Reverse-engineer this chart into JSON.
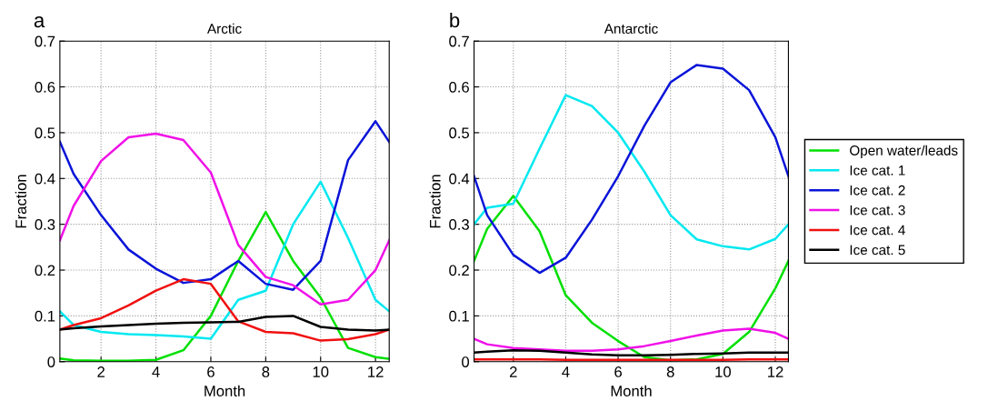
{
  "chart_data": [
    {
      "type": "line",
      "title": "Arctic",
      "xlabel": "Month",
      "ylabel": "Fraction",
      "annotations": [
        "a"
      ],
      "x": [
        0.5,
        1,
        2,
        3,
        4,
        5,
        6,
        7,
        8,
        9,
        10,
        11,
        12,
        12.5
      ],
      "xlim": [
        0.5,
        12.5
      ],
      "xticks": [
        2,
        4,
        6,
        8,
        10,
        12
      ],
      "ylim": [
        0,
        0.7
      ],
      "yticks": [
        0,
        0.1,
        0.2,
        0.3,
        0.4,
        0.5,
        0.6,
        0.7
      ],
      "grid": true,
      "series": [
        {
          "color": "#00e000",
          "values": [
            0.007,
            0.003,
            0.002,
            0.002,
            0.004,
            0.025,
            0.1,
            0.22,
            0.327,
            0.22,
            0.14,
            0.03,
            0.01,
            0.006
          ]
        },
        {
          "color": "#00e8f0",
          "values": [
            0.11,
            0.08,
            0.065,
            0.06,
            0.058,
            0.055,
            0.05,
            0.135,
            0.155,
            0.3,
            0.393,
            0.27,
            0.135,
            0.11
          ]
        },
        {
          "color": "#0a14d8",
          "values": [
            0.48,
            0.41,
            0.32,
            0.245,
            0.203,
            0.172,
            0.18,
            0.22,
            0.17,
            0.157,
            0.22,
            0.44,
            0.525,
            0.48
          ]
        },
        {
          "color": "#f010e8",
          "values": [
            0.265,
            0.34,
            0.438,
            0.49,
            0.498,
            0.484,
            0.413,
            0.255,
            0.185,
            0.167,
            0.125,
            0.135,
            0.2,
            0.265
          ]
        },
        {
          "color": "#f01010",
          "values": [
            0.07,
            0.08,
            0.095,
            0.123,
            0.155,
            0.18,
            0.17,
            0.088,
            0.065,
            0.062,
            0.046,
            0.049,
            0.06,
            0.07
          ]
        },
        {
          "color": "#000000",
          "values": [
            0.07,
            0.073,
            0.077,
            0.08,
            0.083,
            0.085,
            0.086,
            0.087,
            0.098,
            0.1,
            0.076,
            0.07,
            0.068,
            0.07
          ]
        }
      ]
    },
    {
      "type": "line",
      "title": "Antarctic",
      "xlabel": "Month",
      "ylabel": "Fraction",
      "annotations": [
        "b"
      ],
      "x": [
        0.5,
        1,
        2,
        3,
        4,
        5,
        6,
        7,
        8,
        9,
        10,
        11,
        12,
        12.5
      ],
      "xlim": [
        0.5,
        12.5
      ],
      "xticks": [
        2,
        4,
        6,
        8,
        10,
        12
      ],
      "ylim": [
        0,
        0.7
      ],
      "yticks": [
        0,
        0.1,
        0.2,
        0.3,
        0.4,
        0.5,
        0.6,
        0.7
      ],
      "grid": true,
      "legend": "right",
      "series": [
        {
          "name": "Open water/leads",
          "color": "#00e000",
          "values": [
            0.22,
            0.29,
            0.362,
            0.285,
            0.145,
            0.085,
            0.045,
            0.01,
            0.003,
            0.005,
            0.017,
            0.065,
            0.16,
            0.22
          ]
        },
        {
          "name": "Ice cat. 1",
          "color": "#00e8f0",
          "values": [
            0.3,
            0.336,
            0.345,
            0.465,
            0.582,
            0.558,
            0.5,
            0.415,
            0.32,
            0.267,
            0.252,
            0.245,
            0.268,
            0.3
          ]
        },
        {
          "name": "Ice cat. 2",
          "color": "#0a14d8",
          "values": [
            0.405,
            0.32,
            0.233,
            0.194,
            0.227,
            0.31,
            0.405,
            0.515,
            0.61,
            0.648,
            0.64,
            0.593,
            0.49,
            0.405
          ]
        },
        {
          "name": "Ice cat. 3",
          "color": "#f010e8",
          "values": [
            0.05,
            0.038,
            0.03,
            0.027,
            0.024,
            0.024,
            0.027,
            0.034,
            0.045,
            0.057,
            0.068,
            0.072,
            0.063,
            0.05
          ]
        },
        {
          "name": "Ice cat. 4",
          "color": "#f01010",
          "values": [
            0.005,
            0.005,
            0.005,
            0.005,
            0.004,
            0.004,
            0.004,
            0.004,
            0.004,
            0.004,
            0.004,
            0.005,
            0.005,
            0.005
          ]
        },
        {
          "name": "Ice cat. 5",
          "color": "#000000",
          "values": [
            0.02,
            0.022,
            0.025,
            0.024,
            0.02,
            0.016,
            0.014,
            0.014,
            0.015,
            0.017,
            0.018,
            0.02,
            0.02,
            0.02
          ]
        }
      ]
    }
  ]
}
